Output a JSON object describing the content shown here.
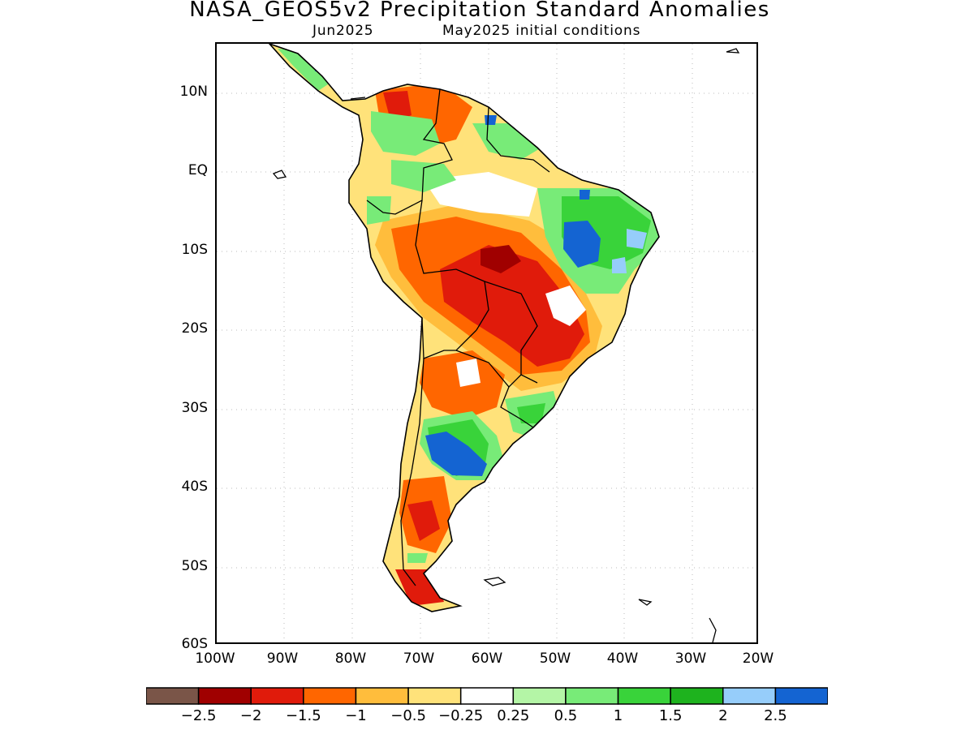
{
  "title": "NASA_GEOS5v2 Precipitation Standard Anomalies",
  "subtitle_left": "Jun2025",
  "subtitle_right": "May2025 initial conditions",
  "axes": {
    "lat_labels": [
      "10N",
      "EQ",
      "10S",
      "20S",
      "30S",
      "40S",
      "50S",
      "60S"
    ],
    "lon_labels": [
      "100W",
      "90W",
      "80W",
      "70W",
      "60W",
      "50W",
      "40W",
      "30W",
      "20W"
    ],
    "grid": "dotted"
  },
  "colorbar": {
    "colors": [
      "#7a5548",
      "#a00000",
      "#e01b0b",
      "#ff6600",
      "#ffbd3c",
      "#ffe27a",
      "#ffffff",
      "#b4f5a6",
      "#78eb78",
      "#39d33a",
      "#1eb31e",
      "#96cdfa",
      "#1464d2"
    ],
    "labels": [
      "−2.5",
      "−2",
      "−1.5",
      "−1",
      "−0.5",
      "−0.25",
      "0.25",
      "0.5",
      "1",
      "1.5",
      "2",
      "2.5"
    ]
  },
  "map_colors": {
    "coast": "#000000",
    "strong_dry": "#a00000",
    "dry": "#e01b0b",
    "moderate_dry": "#ff6600",
    "light_dry": "#ffbd3c",
    "faint_dry": "#ffe27a",
    "faint_wet": "#b4f5a6",
    "light_wet": "#78eb78",
    "wet": "#39d33a",
    "very_wet": "#1464d2",
    "pale_blue": "#96cdfa"
  }
}
